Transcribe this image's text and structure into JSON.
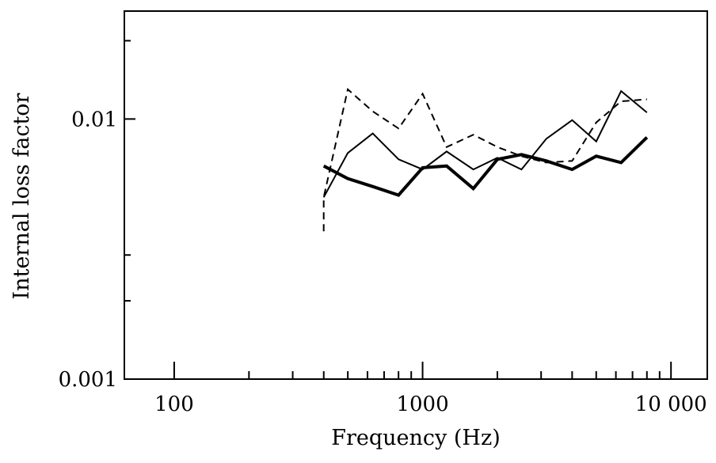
{
  "chart_data": {
    "type": "line",
    "title": "",
    "xlabel": "Frequency (Hz)",
    "ylabel": "Internal loss factor",
    "x_scale": "log",
    "y_scale": "log",
    "xlim": [
      63,
      14000
    ],
    "ylim": [
      0.001,
      0.026
    ],
    "x_ticks": [
      {
        "value": 100,
        "label": "100"
      },
      {
        "value": 1000,
        "label": "1000"
      },
      {
        "value": 10000,
        "label": "10 000"
      }
    ],
    "y_ticks": [
      {
        "value": 0.001,
        "label": "0.001"
      },
      {
        "value": 0.01,
        "label": "0.01"
      }
    ],
    "y_minor_ticks": [
      0.002,
      0.003,
      0.02
    ],
    "x_minor_ticks": [
      200,
      300,
      400,
      500,
      600,
      700,
      800,
      900,
      2000,
      3000,
      4000,
      5000,
      6000,
      7000,
      8000,
      9000
    ],
    "grid": false,
    "legend": "none",
    "series": [
      {
        "style": "dashed",
        "color": "#000000",
        "x": [
          400,
          400,
          500,
          630,
          800,
          1000,
          1250,
          1600,
          2000,
          2500,
          3150,
          4000,
          5000,
          6300,
          8000
        ],
        "values": [
          0.0037,
          0.005,
          0.013,
          0.0107,
          0.0092,
          0.0125,
          0.0078,
          0.0087,
          0.0078,
          0.0072,
          0.0068,
          0.0069,
          0.0097,
          0.0117,
          0.0119
        ]
      },
      {
        "style": "thin",
        "color": "#000000",
        "x": [
          400,
          500,
          630,
          800,
          1000,
          1250,
          1600,
          2000,
          2500,
          3150,
          4000,
          5000,
          6300,
          8000
        ],
        "values": [
          0.005,
          0.0074,
          0.0088,
          0.007,
          0.0064,
          0.0075,
          0.0064,
          0.0071,
          0.0064,
          0.0084,
          0.0099,
          0.0082,
          0.0128,
          0.0106
        ]
      },
      {
        "style": "thick",
        "color": "#000000",
        "x": [
          400,
          500,
          630,
          800,
          1000,
          1250,
          1600,
          2000,
          2500,
          3150,
          4000,
          5000,
          6300,
          8000
        ],
        "values": [
          0.0066,
          0.0059,
          0.0055,
          0.0051,
          0.0065,
          0.0066,
          0.0054,
          0.007,
          0.0073,
          0.0069,
          0.0064,
          0.0072,
          0.0068,
          0.0085
        ]
      }
    ]
  }
}
